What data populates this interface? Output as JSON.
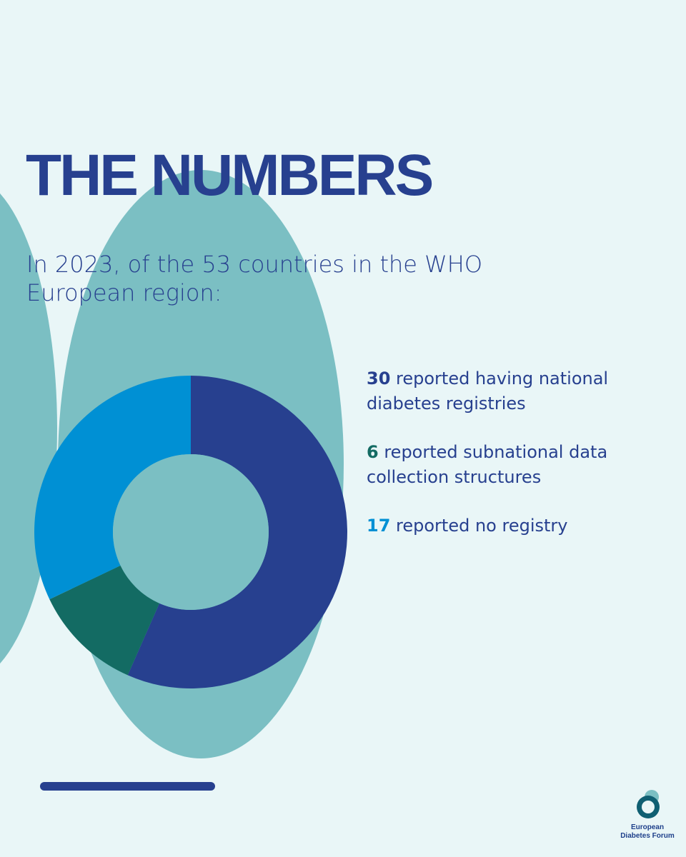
{
  "title": "THE NUMBERS",
  "subtitle": "In 2023, of the 53 countries in the WHO European region:",
  "colors": {
    "background": "#e9f6f7",
    "decor": "#7bbfc3",
    "navy": "#27408f",
    "teal": "#136b63",
    "blue": "#0090d4"
  },
  "stats": [
    {
      "number": "30",
      "text": " reported having national diabetes registries",
      "color": "#27408f"
    },
    {
      "number": "6",
      "text": " reported subnational data collection structures",
      "color": "#136b63"
    },
    {
      "number": "17",
      "text": " reported no registry",
      "color": "#0090d4"
    }
  ],
  "chart_data": {
    "type": "pie",
    "donut": true,
    "title": "",
    "categories": [
      "reported having national diabetes registries",
      "reported subnational data collection structures",
      "reported no registry"
    ],
    "values": [
      30,
      6,
      17
    ],
    "colors": [
      "#27408f",
      "#136b63",
      "#0090d4"
    ],
    "start": "top",
    "direction": "clockwise",
    "legend": "right"
  },
  "logo": {
    "line1": "European",
    "line2": "Diabetes Forum",
    "icon": "overlapping-circles-logo-icon"
  }
}
